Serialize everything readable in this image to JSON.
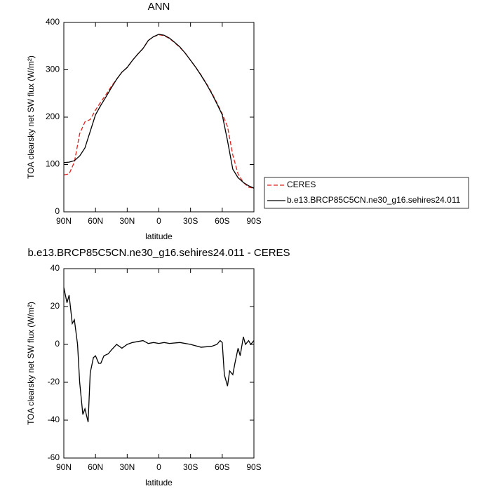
{
  "chart_data": [
    {
      "type": "line",
      "title": "ANN",
      "x_label": "latitude",
      "y_label": "TOA clearsky net SW flux (W/m²)",
      "x": [
        90,
        85,
        80,
        75,
        70,
        65,
        60,
        55,
        50,
        45,
        40,
        35,
        30,
        25,
        20,
        15,
        10,
        5,
        0,
        -5,
        -10,
        -15,
        -20,
        -25,
        -30,
        -35,
        -40,
        -45,
        -50,
        -55,
        -60,
        -65,
        -70,
        -75,
        -80,
        -85,
        -90
      ],
      "series": [
        {
          "name": "CERES",
          "color": "#e0201b",
          "dash": true,
          "values": [
            78,
            80,
            105,
            165,
            190,
            195,
            215,
            232,
            248,
            265,
            280,
            295,
            305,
            320,
            333,
            345,
            362,
            370,
            374,
            372,
            366,
            357,
            347,
            335,
            320,
            305,
            289,
            271,
            252,
            230,
            207,
            180,
            120,
            80,
            62,
            52,
            50
          ]
        },
        {
          "name": "b.e13.BRCP85C5CN.ne30_g16.sehires24.011",
          "color": "#000000",
          "dash": false,
          "values": [
            104,
            105,
            108,
            118,
            135,
            170,
            205,
            225,
            243,
            262,
            280,
            295,
            305,
            320,
            333,
            345,
            362,
            370,
            375,
            373,
            367,
            358,
            348,
            335,
            320,
            305,
            288,
            270,
            250,
            228,
            205,
            150,
            90,
            72,
            62,
            55,
            50
          ]
        }
      ],
      "xlim": [
        90,
        -90
      ],
      "xticks": [
        {
          "value": 90,
          "label": "90N"
        },
        {
          "value": 60,
          "label": "60N"
        },
        {
          "value": 30,
          "label": "30N"
        },
        0,
        {
          "value": -30,
          "label": "30S"
        },
        {
          "value": -60,
          "label": "60S"
        },
        {
          "value": -90,
          "label": "90S"
        }
      ],
      "ylim": [
        0,
        400
      ],
      "yticks": [
        0,
        100,
        200,
        300,
        400
      ],
      "legend": "right",
      "grid": false
    },
    {
      "type": "line",
      "title": "b.e13.BRCP85C5CN.ne30_g16.sehires24.011 - CERES",
      "x_label": "latitude",
      "y_label": "TOA clearsky net SW flux (W/m²)",
      "x": [
        90,
        87,
        85,
        82,
        80,
        77,
        75,
        72,
        70,
        67,
        65,
        62,
        60,
        57,
        55,
        52,
        48,
        45,
        40,
        35,
        30,
        25,
        20,
        15,
        10,
        5,
        0,
        -5,
        -10,
        -20,
        -30,
        -40,
        -50,
        -55,
        -58,
        -60,
        -62,
        -65,
        -67,
        -70,
        -72,
        -75,
        -77,
        -80,
        -82,
        -85,
        -87,
        -90
      ],
      "series": [
        {
          "color": "#000000",
          "dash": false,
          "values": [
            30,
            22,
            26,
            11,
            13,
            0,
            -20,
            -37,
            -34,
            -41,
            -15,
            -7,
            -6,
            -10,
            -10,
            -6,
            -5,
            -3,
            0,
            -2,
            0,
            1,
            1.5,
            2,
            0.5,
            1,
            0.5,
            1,
            0.5,
            1,
            0,
            -1.5,
            -1,
            0,
            2,
            1,
            -16,
            -22,
            -14,
            -16,
            -10,
            -2,
            -6,
            4,
            0,
            2,
            0,
            2
          ]
        }
      ],
      "xlim": [
        90,
        -90
      ],
      "xticks": [
        {
          "value": 90,
          "label": "90N"
        },
        {
          "value": 60,
          "label": "60N"
        },
        {
          "value": 30,
          "label": "30N"
        },
        0,
        {
          "value": -30,
          "label": "30S"
        },
        {
          "value": -60,
          "label": "60S"
        },
        {
          "value": -90,
          "label": "90S"
        }
      ],
      "ylim": [
        -60,
        40
      ],
      "yticks": [
        -60,
        -40,
        -20,
        0,
        20,
        40
      ],
      "grid": false
    }
  ]
}
